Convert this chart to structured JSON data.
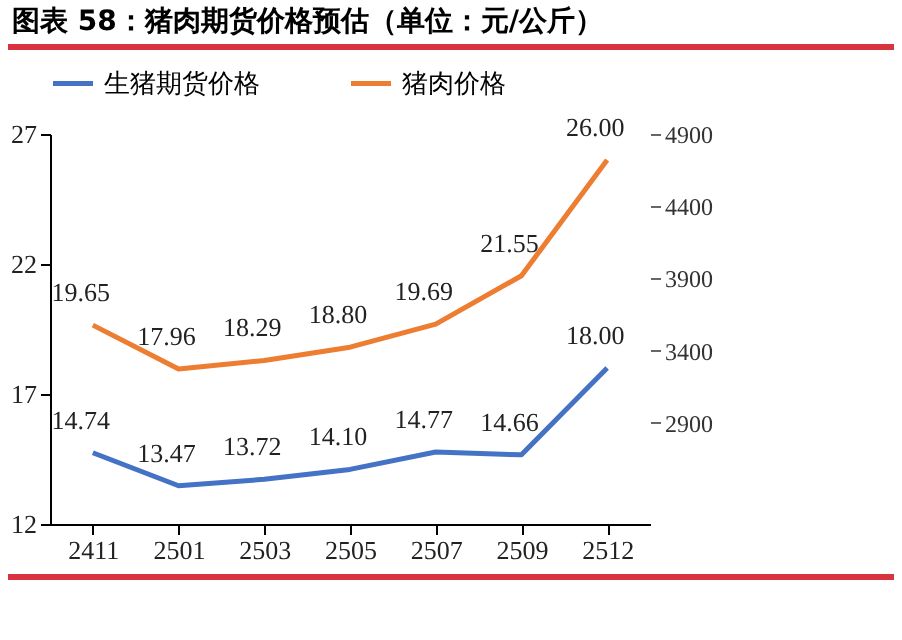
{
  "chart_data": {
    "type": "line",
    "title": "图表 58：猪肉期货价格预估（单位：元/公斤）",
    "categories": [
      "2411",
      "2501",
      "2503",
      "2505",
      "2507",
      "2509",
      "2512"
    ],
    "series": [
      {
        "name": "生猪期货价格",
        "color": "#4472c4",
        "values": [
          14.74,
          13.47,
          13.72,
          14.1,
          14.77,
          14.66,
          18.0
        ],
        "value_labels": [
          "14.74",
          "13.47",
          "13.72",
          "14.10",
          "14.77",
          "14.66",
          "18.00"
        ]
      },
      {
        "name": "猪肉价格",
        "color": "#ed7d31",
        "values": [
          19.65,
          17.96,
          18.29,
          18.8,
          19.69,
          21.55,
          26.0
        ],
        "value_labels": [
          "19.65",
          "17.96",
          "18.29",
          "18.80",
          "19.69",
          "21.55",
          "26.00"
        ]
      }
    ],
    "ylim": [
      12,
      27
    ],
    "yticks": [
      12,
      17,
      22,
      27
    ],
    "y2lim": [
      2200,
      4900
    ],
    "y2ticks": [
      2900,
      3400,
      3900,
      4400,
      4900
    ],
    "legend": "top",
    "grid": false,
    "marker": "none",
    "line_style": "solid"
  }
}
